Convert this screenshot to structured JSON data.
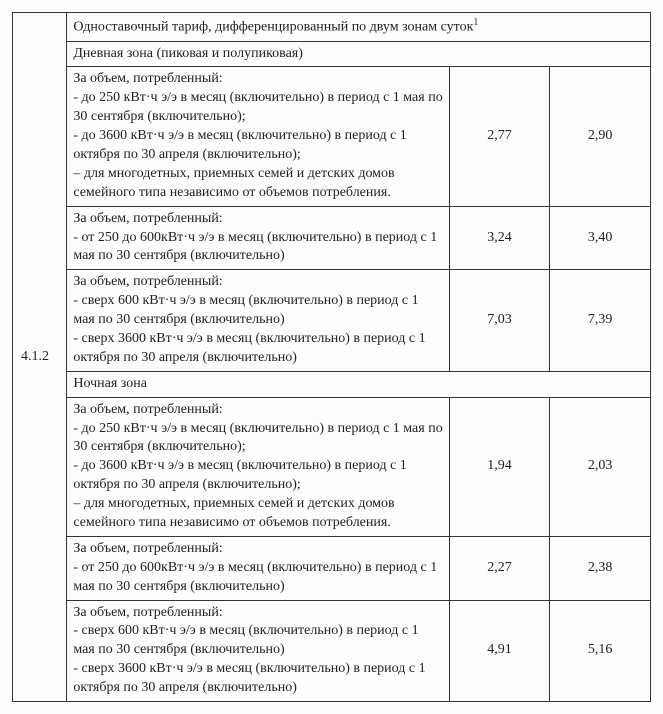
{
  "table": {
    "section_number": "4.1.2",
    "header_main": "Одноставочный тариф, дифференцированный по двум зонам суток",
    "header_main_sup": "1",
    "zone_day_header": "Дневная зона (пиковая и полупиковая)",
    "zone_night_header": "Ночная зона",
    "rows": [
      {
        "desc": "За объем, потребленный:\n- до 250 кВт·ч э/э в месяц (включительно) в период с 1 мая по 30 сентября (включительно);\n- до 3600 кВт·ч э/э в месяц (включительно) в период с 1 октября по 30 апреля (включительно);\n– для многодетных, приемных семей и детских домов семейного типа независимо от объемов потребления.",
        "v1": "2,77",
        "v2": "2,90"
      },
      {
        "desc": "За объем, потребленный:\n- от 250 до 600кВт·ч э/э в месяц (включительно) в период с 1 мая по 30 сентября (включительно)",
        "v1": "3,24",
        "v2": "3,40"
      },
      {
        "desc": "За объем, потребленный:\n- сверх 600 кВт·ч э/э в месяц (включительно) в период с 1 мая по 30 сентября (включительно)\n- сверх 3600 кВт·ч э/э в месяц (включительно) в период с 1 октября по 30 апреля (включительно)",
        "v1": "7,03",
        "v2": "7,39"
      },
      {
        "desc": "За объем, потребленный:\n- до 250 кВт·ч э/э в месяц (включительно) в период с 1 мая по 30 сентября (включительно);\n- до 3600 кВт·ч э/э в месяц (включительно) в период с 1 октября по 30 апреля (включительно);\n– для многодетных, приемных семей и детских домов семейного типа независимо от объемов потребления.",
        "v1": "1,94",
        "v2": "2,03"
      },
      {
        "desc": "За объем, потребленный:\n- от 250 до 600кВт·ч э/э в месяц (включительно) в период с 1 мая по 30 сентября (включительно)",
        "v1": "2,27",
        "v2": "2,38"
      },
      {
        "desc": "За объем, потребленный:\n- сверх 600 кВт·ч э/э в месяц (включительно) в период с 1 мая по 30 сентября (включительно)\n- сверх 3600 кВт·ч э/э в месяц (включительно) в период с 1 октября по 30 апреля (включительно)",
        "v1": "4,91",
        "v2": "5,16"
      }
    ]
  }
}
